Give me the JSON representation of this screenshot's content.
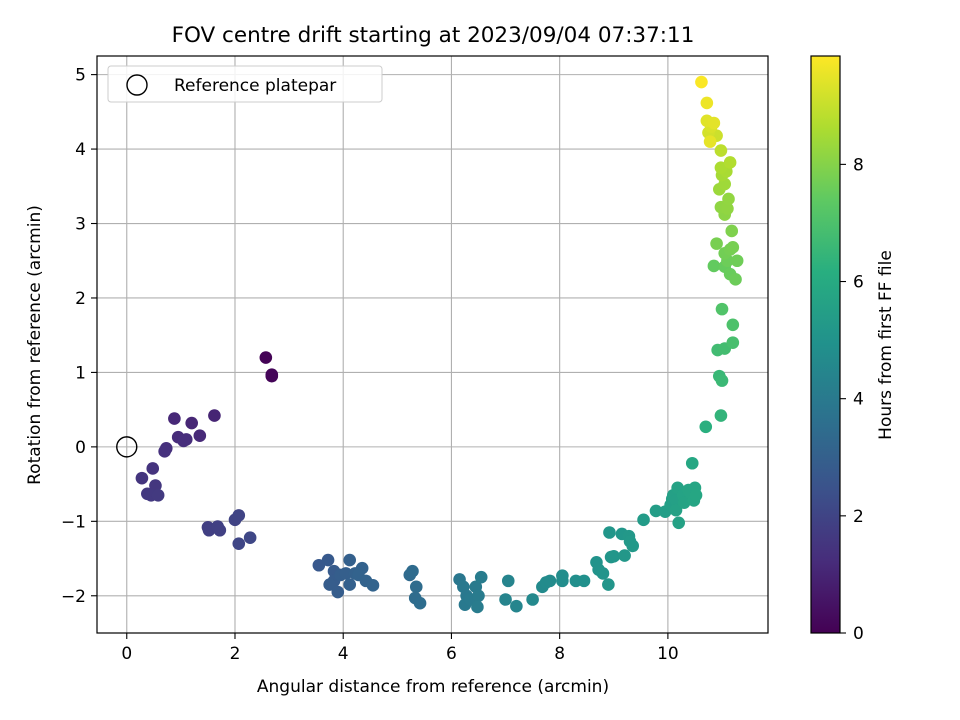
{
  "chart_data": {
    "type": "scatter",
    "title": "FOV centre drift starting at 2023/09/04 07:37:11",
    "xlabel": "Angular distance from reference (arcmin)",
    "ylabel": "Rotation from reference (arcmin)",
    "xlim": [
      -0.55,
      11.85
    ],
    "ylim": [
      -2.5,
      5.25
    ],
    "xticks": [
      0,
      2,
      4,
      6,
      8,
      10
    ],
    "yticks": [
      -2,
      -1,
      0,
      1,
      2,
      3,
      4,
      5
    ],
    "grid": true,
    "legend": {
      "position": "top-left",
      "entries": [
        {
          "label": "Reference platepar",
          "marker": "open-circle"
        }
      ]
    },
    "reference_point": {
      "x": 0.0,
      "y": 0.0
    },
    "colorbar": {
      "label": "Hours from first FF file",
      "colormap": "viridis",
      "range": [
        0,
        9.85
      ],
      "ticks": [
        0,
        2,
        4,
        6,
        8
      ]
    },
    "points": [
      [
        2.57,
        1.2,
        0.05
      ],
      [
        2.68,
        0.95,
        0.1
      ],
      [
        2.68,
        0.97,
        0.12
      ],
      [
        1.62,
        0.42,
        1.0
      ],
      [
        1.2,
        0.32,
        1.05
      ],
      [
        0.88,
        0.38,
        1.1
      ],
      [
        1.35,
        0.15,
        1.15
      ],
      [
        0.95,
        0.13,
        1.2
      ],
      [
        1.1,
        0.1,
        1.25
      ],
      [
        1.05,
        0.08,
        1.28
      ],
      [
        0.73,
        -0.02,
        1.32
      ],
      [
        0.7,
        -0.06,
        1.36
      ],
      [
        0.48,
        -0.29,
        1.45
      ],
      [
        0.28,
        -0.42,
        1.5
      ],
      [
        0.53,
        -0.52,
        1.55
      ],
      [
        0.38,
        -0.63,
        1.6
      ],
      [
        0.45,
        -0.65,
        1.62
      ],
      [
        0.58,
        -0.65,
        1.65
      ],
      [
        1.5,
        -1.08,
        1.8
      ],
      [
        1.52,
        -1.12,
        1.82
      ],
      [
        1.68,
        -1.07,
        1.85
      ],
      [
        1.72,
        -1.12,
        1.88
      ],
      [
        2.0,
        -0.98,
        1.95
      ],
      [
        2.07,
        -0.92,
        2.0
      ],
      [
        2.07,
        -1.3,
        2.05
      ],
      [
        2.28,
        -1.22,
        2.1
      ],
      [
        3.55,
        -1.59,
        2.7
      ],
      [
        3.72,
        -1.52,
        2.75
      ],
      [
        3.83,
        -1.67,
        2.8
      ],
      [
        3.83,
        -1.8,
        2.85
      ],
      [
        3.75,
        -1.85,
        2.88
      ],
      [
        3.9,
        -1.95,
        2.9
      ],
      [
        3.95,
        -1.72,
        2.92
      ],
      [
        4.05,
        -1.7,
        2.95
      ],
      [
        4.12,
        -1.52,
        3.0
      ],
      [
        4.12,
        -1.85,
        3.02
      ],
      [
        4.22,
        -1.7,
        3.05
      ],
      [
        4.35,
        -1.63,
        3.08
      ],
      [
        4.28,
        -1.72,
        3.1
      ],
      [
        4.42,
        -1.8,
        3.12
      ],
      [
        4.55,
        -1.86,
        3.15
      ],
      [
        5.23,
        -1.72,
        3.4
      ],
      [
        5.28,
        -1.67,
        3.42
      ],
      [
        5.35,
        -1.88,
        3.45
      ],
      [
        5.33,
        -2.03,
        3.48
      ],
      [
        5.42,
        -2.1,
        3.5
      ],
      [
        6.15,
        -1.78,
        3.9
      ],
      [
        6.22,
        -1.88,
        3.92
      ],
      [
        6.28,
        -2.0,
        3.95
      ],
      [
        6.25,
        -2.12,
        3.98
      ],
      [
        6.35,
        -2.05,
        4.0
      ],
      [
        6.45,
        -1.88,
        4.02
      ],
      [
        6.5,
        -2.0,
        4.05
      ],
      [
        6.48,
        -2.15,
        4.08
      ],
      [
        6.55,
        -1.75,
        4.1
      ],
      [
        7.0,
        -2.05,
        4.4
      ],
      [
        7.05,
        -1.8,
        4.42
      ],
      [
        7.2,
        -2.14,
        4.45
      ],
      [
        7.5,
        -2.05,
        4.6
      ],
      [
        7.68,
        -1.88,
        4.65
      ],
      [
        7.75,
        -1.82,
        4.68
      ],
      [
        7.82,
        -1.8,
        4.7
      ],
      [
        8.05,
        -1.73,
        4.75
      ],
      [
        8.05,
        -1.8,
        4.78
      ],
      [
        8.3,
        -1.8,
        4.85
      ],
      [
        8.45,
        -1.8,
        4.88
      ],
      [
        8.68,
        -1.55,
        5.0
      ],
      [
        8.72,
        -1.65,
        5.02
      ],
      [
        8.8,
        -1.7,
        5.05
      ],
      [
        8.9,
        -1.85,
        5.08
      ],
      [
        8.95,
        -1.48,
        5.1
      ],
      [
        8.92,
        -1.15,
        5.12
      ],
      [
        9.0,
        -1.47,
        5.15
      ],
      [
        9.15,
        -1.17,
        5.18
      ],
      [
        9.2,
        -1.46,
        5.2
      ],
      [
        9.28,
        -1.2,
        5.22
      ],
      [
        9.35,
        -1.33,
        5.25
      ],
      [
        9.3,
        -1.27,
        5.28
      ],
      [
        9.55,
        -0.98,
        5.35
      ],
      [
        9.78,
        -0.86,
        5.45
      ],
      [
        9.95,
        -0.87,
        5.48
      ],
      [
        10.05,
        -0.78,
        5.5
      ],
      [
        10.08,
        -0.7,
        5.52
      ],
      [
        10.1,
        -0.65,
        5.55
      ],
      [
        10.15,
        -0.72,
        5.58
      ],
      [
        10.15,
        -0.85,
        5.6
      ],
      [
        10.2,
        -1.02,
        5.62
      ],
      [
        10.18,
        -0.55,
        5.65
      ],
      [
        10.28,
        -0.65,
        5.68
      ],
      [
        10.3,
        -0.75,
        5.7
      ],
      [
        10.38,
        -0.58,
        5.72
      ],
      [
        10.42,
        -0.62,
        5.74
      ],
      [
        10.48,
        -0.72,
        5.76
      ],
      [
        10.5,
        -0.55,
        5.78
      ],
      [
        10.52,
        -0.65,
        5.8
      ],
      [
        10.45,
        -0.22,
        5.85
      ],
      [
        10.7,
        0.27,
        6.2
      ],
      [
        10.98,
        0.42,
        6.4
      ],
      [
        10.95,
        0.95,
        6.55
      ],
      [
        11.0,
        0.89,
        6.6
      ],
      [
        10.92,
        1.3,
        6.75
      ],
      [
        11.05,
        1.32,
        6.8
      ],
      [
        11.2,
        1.4,
        6.9
      ],
      [
        11.2,
        1.64,
        7.0
      ],
      [
        11.0,
        1.85,
        7.1
      ],
      [
        10.85,
        2.43,
        7.45
      ],
      [
        11.05,
        2.42,
        7.5
      ],
      [
        11.15,
        2.32,
        7.55
      ],
      [
        11.25,
        2.25,
        7.6
      ],
      [
        11.1,
        2.5,
        7.62
      ],
      [
        11.28,
        2.5,
        7.65
      ],
      [
        11.05,
        2.6,
        7.7
      ],
      [
        11.15,
        2.65,
        7.75
      ],
      [
        11.2,
        2.68,
        7.78
      ],
      [
        10.9,
        2.73,
        7.8
      ],
      [
        11.18,
        2.9,
        7.9
      ],
      [
        11.05,
        3.12,
        8.1
      ],
      [
        10.98,
        3.22,
        8.15
      ],
      [
        11.1,
        3.2,
        8.18
      ],
      [
        11.12,
        3.33,
        8.2
      ],
      [
        10.95,
        3.46,
        8.35
      ],
      [
        11.05,
        3.53,
        8.4
      ],
      [
        11.0,
        3.65,
        8.5
      ],
      [
        11.08,
        3.7,
        8.55
      ],
      [
        10.98,
        3.75,
        8.6
      ],
      [
        11.15,
        3.82,
        8.7
      ],
      [
        10.98,
        3.98,
        8.85
      ],
      [
        10.9,
        4.18,
        9.1
      ],
      [
        10.75,
        4.22,
        9.2
      ],
      [
        10.8,
        4.3,
        9.3
      ],
      [
        10.72,
        4.38,
        9.4
      ],
      [
        10.85,
        4.35,
        9.45
      ],
      [
        10.78,
        4.1,
        9.5
      ],
      [
        10.72,
        4.62,
        9.6
      ],
      [
        10.62,
        4.9,
        9.8
      ]
    ]
  }
}
